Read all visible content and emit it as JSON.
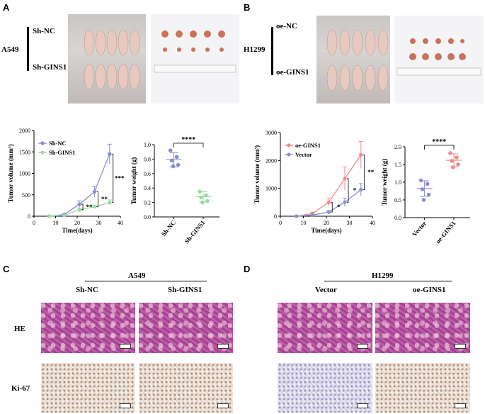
{
  "panels": {
    "A": {
      "letter": "A",
      "cell_line": "A549",
      "group_top": "Sh-NC",
      "group_bottom": "Sh-GINS1"
    },
    "B": {
      "letter": "B",
      "cell_line": "H1299",
      "group_top": "oe-NC",
      "group_bottom": "oe-GINS1"
    },
    "C": {
      "letter": "C",
      "cell_line": "A549",
      "col1": "Sh-NC",
      "col2": "Sh-GINS1",
      "row1": "HE",
      "row2": "Ki-67"
    },
    "D": {
      "letter": "D",
      "cell_line": "H1299",
      "col1": "Vector",
      "col2": "oe-GINS1"
    }
  },
  "chart_data": [
    {
      "type": "line",
      "panel": "A",
      "xlabel": "Time(days)",
      "ylabel": "Tumor volume (mm³)",
      "xlim": [
        0,
        40
      ],
      "ylim": [
        0,
        2000
      ],
      "xticks": [
        "0",
        "10",
        "20",
        "30",
        "40"
      ],
      "yticks": [
        "0",
        "500",
        "1000",
        "1500",
        "2000"
      ],
      "x": [
        7,
        14,
        21,
        28,
        35
      ],
      "series": [
        {
          "name": "Sh-NC",
          "color": "#8a8ed0",
          "values": [
            0,
            40,
            280,
            570,
            1450
          ],
          "err": [
            0,
            20,
            80,
            120,
            230
          ]
        },
        {
          "name": "Sh-GINS1",
          "color": "#9fd9a0",
          "values": [
            0,
            20,
            150,
            220,
            320
          ],
          "err": [
            0,
            10,
            40,
            40,
            60
          ]
        }
      ],
      "annotations": [
        "**",
        "**",
        "***"
      ]
    },
    {
      "type": "scatter",
      "panel": "A",
      "ylabel": "Tumor weight (g)",
      "ylim": [
        0.0,
        1.0
      ],
      "yticks": [
        "0.0",
        "0.2",
        "0.4",
        "0.6",
        "0.8",
        "1.0"
      ],
      "categories": [
        "Sh-NC",
        "Sh-GINS1"
      ],
      "colors": [
        "#8a8ed0",
        "#9fd9a0"
      ],
      "points": [
        [
          0.92,
          0.83,
          0.78,
          0.72,
          0.7
        ],
        [
          0.35,
          0.3,
          0.27,
          0.22,
          0.2
        ]
      ],
      "means": [
        0.79,
        0.28
      ],
      "sd": [
        0.1,
        0.07
      ],
      "significance": "****"
    },
    {
      "type": "line",
      "panel": "B",
      "xlabel": "Time(days)",
      "ylabel": "Tumor volume (mm³)",
      "xlim": [
        0,
        40
      ],
      "ylim": [
        0,
        3000
      ],
      "xticks": [
        "0",
        "10",
        "20",
        "30",
        "40"
      ],
      "yticks": [
        "0",
        "1000",
        "2000",
        "3000"
      ],
      "x": [
        7,
        14,
        21,
        28,
        35
      ],
      "series": [
        {
          "name": "oe-GINS1",
          "color": "#f08a8a",
          "values": [
            0,
            100,
            500,
            1350,
            2200
          ],
          "err": [
            0,
            40,
            150,
            420,
            480
          ]
        },
        {
          "name": "Vector",
          "color": "#8a8ed0",
          "values": [
            0,
            40,
            150,
            500,
            950
          ],
          "err": [
            0,
            20,
            50,
            150,
            220
          ]
        }
      ],
      "annotations": [
        "*",
        "*",
        "**"
      ]
    },
    {
      "type": "scatter",
      "panel": "B",
      "ylabel": "Tumor weight (g)",
      "ylim": [
        0.0,
        2.0
      ],
      "yticks": [
        "0.0",
        "0.5",
        "1.0",
        "1.5",
        "2.0"
      ],
      "categories": [
        "Vector",
        "oe-GINS1"
      ],
      "colors": [
        "#8a8ed0",
        "#f08a8a"
      ],
      "points": [
        [
          1.05,
          0.95,
          0.8,
          0.65,
          0.5
        ],
        [
          1.82,
          1.7,
          1.6,
          1.5,
          1.42
        ]
      ],
      "means": [
        0.82,
        1.62
      ],
      "sd": [
        0.22,
        0.18
      ],
      "significance": "****"
    }
  ]
}
